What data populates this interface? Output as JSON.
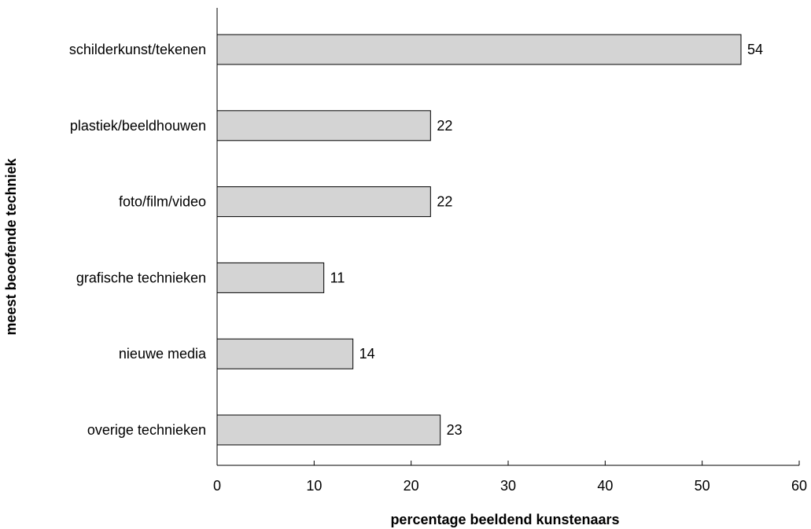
{
  "chart_data": {
    "type": "bar",
    "orientation": "horizontal",
    "categories": [
      "schilderkunst/tekenen",
      "plastiek/beeldhouwen",
      "foto/film/video",
      "grafische technieken",
      "nieuwe media",
      "overige technieken"
    ],
    "values": [
      54,
      22,
      22,
      11,
      14,
      23
    ],
    "xlabel": "percentage beeldend kunstenaars",
    "ylabel": "meest beoefende techniek",
    "xlim": [
      0,
      60
    ],
    "xticks": [
      0,
      10,
      20,
      30,
      40,
      50,
      60
    ],
    "grid": false,
    "colors": {
      "bar_fill": "#d4d4d4",
      "bar_stroke": "#000000"
    }
  }
}
